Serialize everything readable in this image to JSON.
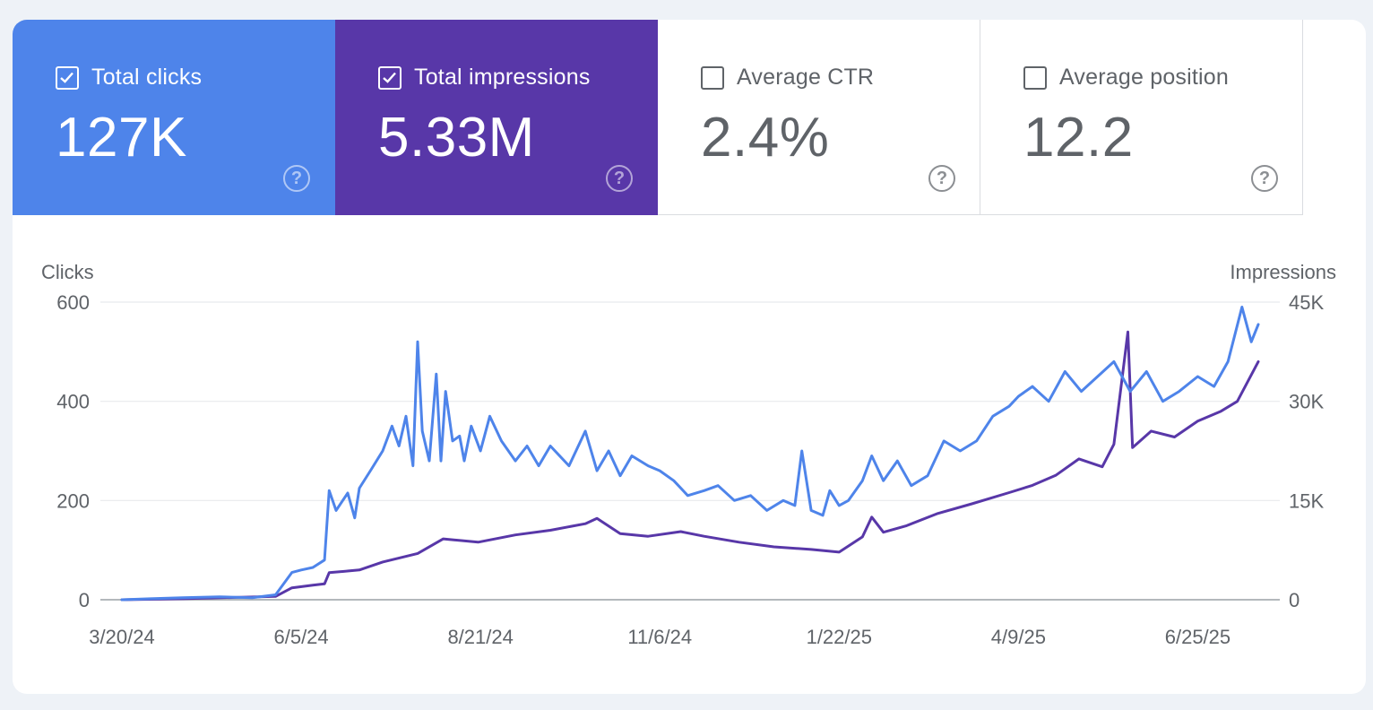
{
  "metrics": [
    {
      "label": "Total clicks",
      "value": "127K",
      "checked": true,
      "color": "#4e84ea"
    },
    {
      "label": "Total impressions",
      "value": "5.33M",
      "checked": true,
      "color": "#5837a8"
    },
    {
      "label": "Average CTR",
      "value": "2.4%",
      "checked": false,
      "color": "#ffffff"
    },
    {
      "label": "Average position",
      "value": "12.2",
      "checked": false,
      "color": "#ffffff"
    }
  ],
  "help_glyph": "?",
  "chart_data": {
    "type": "line",
    "left_axis": {
      "label": "Clicks",
      "ticks": [
        "0",
        "200",
        "400",
        "600"
      ],
      "range": [
        0,
        600
      ]
    },
    "right_axis": {
      "label": "Impressions",
      "ticks": [
        "0",
        "15K",
        "30K",
        "45K"
      ],
      "range": [
        0,
        45000
      ]
    },
    "x_ticks": [
      "3/20/24",
      "6/5/24",
      "8/21/24",
      "11/6/24",
      "1/22/25",
      "4/9/25",
      "6/25/25"
    ],
    "x_range": [
      "2024-03-20",
      "2025-07-21"
    ],
    "grid": true,
    "series": [
      {
        "axis": "left",
        "color": "#4e84ea",
        "points": [
          [
            "2024-03-20",
            0
          ],
          [
            "2024-04-01",
            2
          ],
          [
            "2024-04-15",
            4
          ],
          [
            "2024-05-01",
            6
          ],
          [
            "2024-05-15",
            4
          ],
          [
            "2024-05-25",
            10
          ],
          [
            "2024-06-01",
            55
          ],
          [
            "2024-06-05",
            60
          ],
          [
            "2024-06-10",
            65
          ],
          [
            "2024-06-15",
            80
          ],
          [
            "2024-06-17",
            220
          ],
          [
            "2024-06-20",
            180
          ],
          [
            "2024-06-25",
            215
          ],
          [
            "2024-06-28",
            165
          ],
          [
            "2024-06-30",
            225
          ],
          [
            "2024-07-05",
            262
          ],
          [
            "2024-07-10",
            300
          ],
          [
            "2024-07-14",
            350
          ],
          [
            "2024-07-17",
            310
          ],
          [
            "2024-07-20",
            370
          ],
          [
            "2024-07-23",
            270
          ],
          [
            "2024-07-25",
            520
          ],
          [
            "2024-07-27",
            340
          ],
          [
            "2024-07-30",
            280
          ],
          [
            "2024-08-02",
            455
          ],
          [
            "2024-08-04",
            280
          ],
          [
            "2024-08-06",
            420
          ],
          [
            "2024-08-09",
            320
          ],
          [
            "2024-08-12",
            330
          ],
          [
            "2024-08-14",
            280
          ],
          [
            "2024-08-17",
            350
          ],
          [
            "2024-08-21",
            300
          ],
          [
            "2024-08-25",
            370
          ],
          [
            "2024-08-30",
            320
          ],
          [
            "2024-09-05",
            280
          ],
          [
            "2024-09-10",
            310
          ],
          [
            "2024-09-15",
            270
          ],
          [
            "2024-09-20",
            310
          ],
          [
            "2024-09-28",
            270
          ],
          [
            "2024-10-05",
            340
          ],
          [
            "2024-10-10",
            260
          ],
          [
            "2024-10-15",
            300
          ],
          [
            "2024-10-20",
            250
          ],
          [
            "2024-10-25",
            290
          ],
          [
            "2024-11-01",
            270
          ],
          [
            "2024-11-06",
            260
          ],
          [
            "2024-11-12",
            240
          ],
          [
            "2024-11-18",
            210
          ],
          [
            "2024-11-25",
            220
          ],
          [
            "2024-12-01",
            230
          ],
          [
            "2024-12-08",
            200
          ],
          [
            "2024-12-15",
            210
          ],
          [
            "2024-12-22",
            180
          ],
          [
            "2024-12-29",
            200
          ],
          [
            "2025-01-03",
            190
          ],
          [
            "2025-01-06",
            300
          ],
          [
            "2025-01-10",
            180
          ],
          [
            "2025-01-15",
            170
          ],
          [
            "2025-01-18",
            220
          ],
          [
            "2025-01-22",
            190
          ],
          [
            "2025-01-26",
            200
          ],
          [
            "2025-02-01",
            240
          ],
          [
            "2025-02-05",
            290
          ],
          [
            "2025-02-10",
            240
          ],
          [
            "2025-02-16",
            280
          ],
          [
            "2025-02-22",
            230
          ],
          [
            "2025-03-01",
            250
          ],
          [
            "2025-03-08",
            320
          ],
          [
            "2025-03-15",
            300
          ],
          [
            "2025-03-22",
            320
          ],
          [
            "2025-03-29",
            370
          ],
          [
            "2025-04-05",
            390
          ],
          [
            "2025-04-09",
            410
          ],
          [
            "2025-04-15",
            430
          ],
          [
            "2025-04-22",
            400
          ],
          [
            "2025-04-29",
            460
          ],
          [
            "2025-05-06",
            420
          ],
          [
            "2025-05-13",
            450
          ],
          [
            "2025-05-20",
            480
          ],
          [
            "2025-05-27",
            420
          ],
          [
            "2025-06-03",
            460
          ],
          [
            "2025-06-10",
            400
          ],
          [
            "2025-06-17",
            420
          ],
          [
            "2025-06-25",
            450
          ],
          [
            "2025-07-02",
            430
          ],
          [
            "2025-07-08",
            480
          ],
          [
            "2025-07-14",
            590
          ],
          [
            "2025-07-18",
            520
          ],
          [
            "2025-07-21",
            555
          ]
        ]
      },
      {
        "axis": "right",
        "color": "#5837a8",
        "points": [
          [
            "2024-03-20",
            0
          ],
          [
            "2024-04-15",
            150
          ],
          [
            "2024-05-01",
            300
          ],
          [
            "2024-05-25",
            500
          ],
          [
            "2024-06-01",
            1800
          ],
          [
            "2024-06-10",
            2200
          ],
          [
            "2024-06-15",
            2400
          ],
          [
            "2024-06-17",
            4100
          ],
          [
            "2024-06-30",
            4500
          ],
          [
            "2024-07-10",
            5700
          ],
          [
            "2024-07-25",
            7000
          ],
          [
            "2024-08-05",
            9200
          ],
          [
            "2024-08-20",
            8700
          ],
          [
            "2024-09-05",
            9800
          ],
          [
            "2024-09-20",
            10500
          ],
          [
            "2024-10-05",
            11500
          ],
          [
            "2024-10-10",
            12300
          ],
          [
            "2024-10-20",
            10000
          ],
          [
            "2024-11-01",
            9600
          ],
          [
            "2024-11-15",
            10300
          ],
          [
            "2024-11-25",
            9600
          ],
          [
            "2024-12-10",
            8700
          ],
          [
            "2024-12-25",
            8000
          ],
          [
            "2025-01-10",
            7600
          ],
          [
            "2025-01-22",
            7200
          ],
          [
            "2025-02-01",
            9500
          ],
          [
            "2025-02-05",
            12500
          ],
          [
            "2025-02-10",
            10200
          ],
          [
            "2025-02-20",
            11200
          ],
          [
            "2025-03-05",
            13000
          ],
          [
            "2025-03-20",
            14500
          ],
          [
            "2025-04-05",
            16200
          ],
          [
            "2025-04-15",
            17300
          ],
          [
            "2025-04-25",
            18800
          ],
          [
            "2025-05-05",
            21300
          ],
          [
            "2025-05-15",
            20100
          ],
          [
            "2025-05-20",
            23500
          ],
          [
            "2025-05-26",
            40500
          ],
          [
            "2025-05-28",
            23000
          ],
          [
            "2025-06-05",
            25500
          ],
          [
            "2025-06-15",
            24600
          ],
          [
            "2025-06-25",
            27000
          ],
          [
            "2025-07-05",
            28500
          ],
          [
            "2025-07-12",
            30000
          ],
          [
            "2025-07-18",
            34000
          ],
          [
            "2025-07-21",
            36000
          ]
        ]
      }
    ]
  }
}
